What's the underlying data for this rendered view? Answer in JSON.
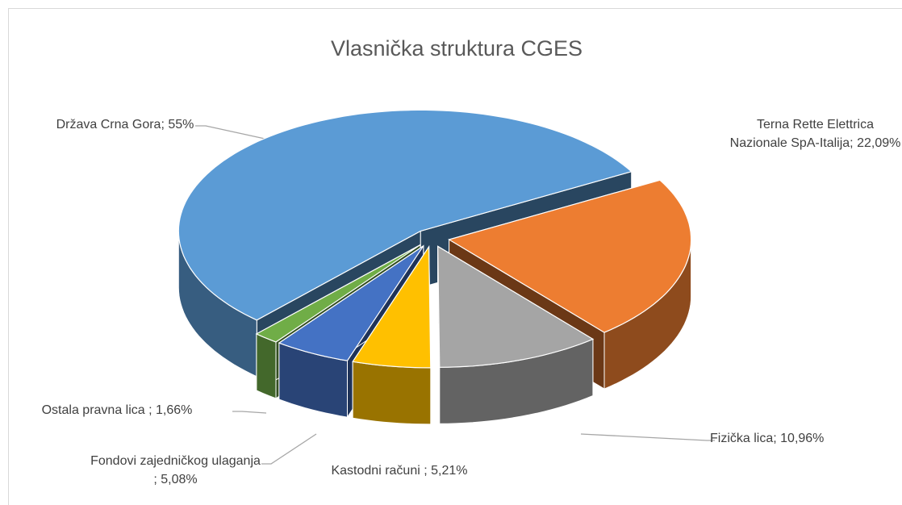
{
  "chart_data": {
    "type": "pie3d",
    "title": "Vlasnička struktura CGES",
    "categories": [
      "Država Crna Gora;",
      "Terna Rette Elettrica Nazionale SpA-Italija;",
      "Fizička lica;",
      "Kastodni računi ;",
      "Fondovi zajedničkog ulaganja ;",
      "Ostala pravna lica ;"
    ],
    "values": [
      55,
      22.09,
      10.96,
      5.21,
      5.08,
      1.66
    ],
    "value_labels": [
      "55%",
      "22,09%",
      "10,96%",
      "5,21%",
      "5,08%",
      "1,66%"
    ],
    "colors": [
      "#5b9bd5",
      "#ed7d31",
      "#a5a5a5",
      "#ffc000",
      "#4472c4",
      "#70ad47"
    ]
  }
}
